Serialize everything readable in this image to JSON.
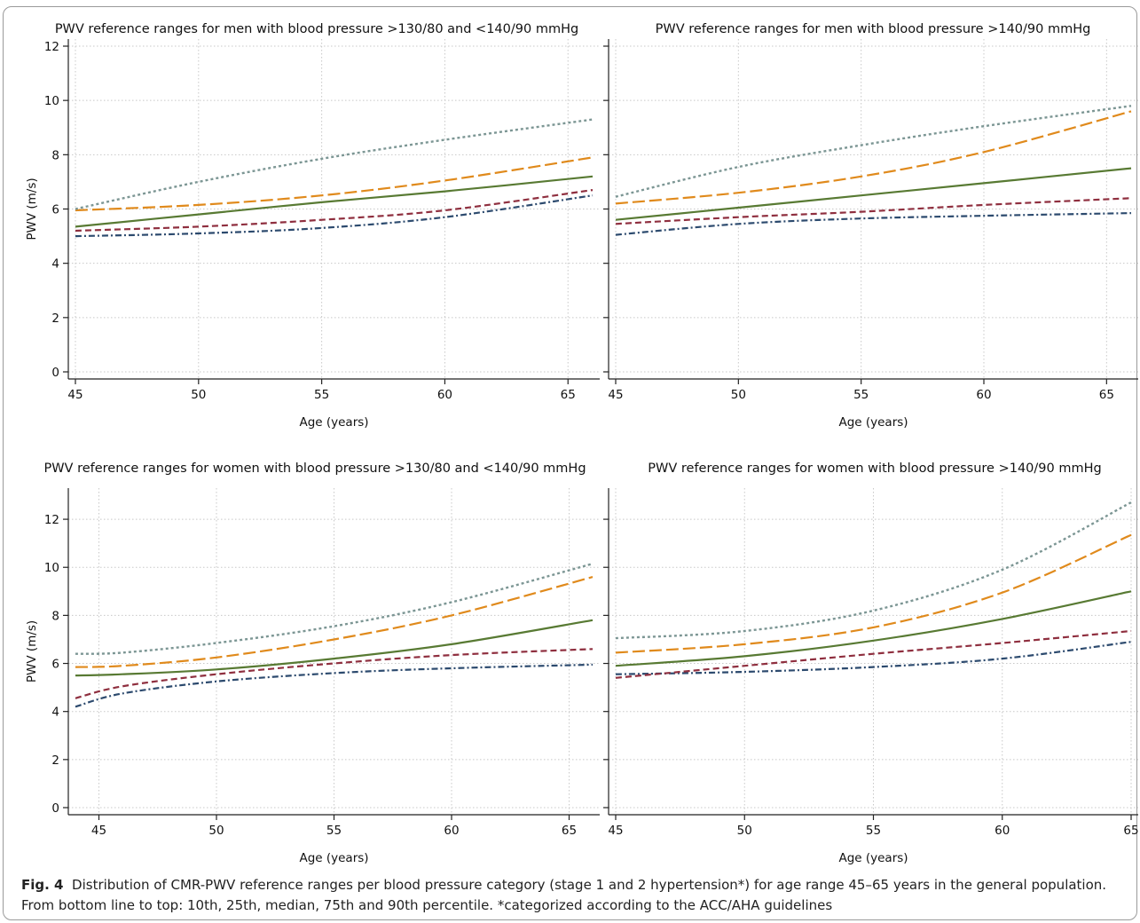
{
  "figure": {
    "caption_label": "Fig. 4",
    "caption_text": "Distribution of CMR-PWV reference ranges per blood pressure category (stage 1 and 2 hypertension*) for age range 45–65 years in the general population. From bottom line to top: 10th, 25th, median, 75th and 90th percentile. *categorized according to the ACC/AHA guidelines"
  },
  "styles": {
    "p10": {
      "color": "#2c4a6e",
      "dash": "7 3 2 3",
      "width": 2.2
    },
    "p25": {
      "color": "#8f2f3f",
      "dash": "7 4",
      "width": 2.2
    },
    "p50": {
      "color": "#587a33",
      "dash": "",
      "width": 2.2
    },
    "p75": {
      "color": "#e08a1c",
      "dash": "14 5",
      "width": 2.2
    },
    "p90": {
      "color": "#7c9694",
      "dash": "3 3",
      "width": 2.4
    }
  },
  "chart_data": [
    {
      "type": "line",
      "title": "PWV reference ranges for men with blood pressure >130/80 and <140/90 mmHg",
      "xlabel": "Age (years)",
      "ylabel": "PWV (m/s)",
      "xlim": [
        45,
        66
      ],
      "ylim": [
        0,
        12
      ],
      "xticks": [
        45,
        50,
        55,
        60,
        65
      ],
      "yticks": [
        0,
        2,
        4,
        6,
        8,
        10,
        12
      ],
      "x": [
        45,
        50,
        55,
        60,
        66
      ],
      "series": [
        {
          "key": "p10",
          "values": [
            5.0,
            5.1,
            5.3,
            5.7,
            6.5
          ]
        },
        {
          "key": "p25",
          "values": [
            5.2,
            5.35,
            5.6,
            5.95,
            6.7
          ]
        },
        {
          "key": "p50",
          "values": [
            5.35,
            5.8,
            6.25,
            6.65,
            7.2
          ]
        },
        {
          "key": "p75",
          "values": [
            5.95,
            6.15,
            6.5,
            7.05,
            7.9
          ]
        },
        {
          "key": "p90",
          "values": [
            6.0,
            7.0,
            7.85,
            8.55,
            9.3
          ]
        }
      ]
    },
    {
      "type": "line",
      "title": "PWV reference ranges for men with blood pressure >140/90 mmHg",
      "xlabel": "Age (years)",
      "ylabel": "",
      "xlim": [
        45,
        66
      ],
      "ylim": [
        0,
        12
      ],
      "xticks": [
        45,
        50,
        55,
        60,
        65
      ],
      "yticks": [
        0,
        2,
        4,
        6,
        8,
        10,
        12
      ],
      "x": [
        45,
        50,
        55,
        60,
        66
      ],
      "series": [
        {
          "key": "p10",
          "values": [
            5.05,
            5.45,
            5.65,
            5.75,
            5.85
          ]
        },
        {
          "key": "p25",
          "values": [
            5.45,
            5.7,
            5.9,
            6.15,
            6.4
          ]
        },
        {
          "key": "p50",
          "values": [
            5.6,
            6.05,
            6.5,
            6.95,
            7.5
          ]
        },
        {
          "key": "p75",
          "values": [
            6.2,
            6.6,
            7.2,
            8.1,
            9.6
          ]
        },
        {
          "key": "p90",
          "values": [
            6.45,
            7.55,
            8.35,
            9.05,
            9.8
          ]
        }
      ]
    },
    {
      "type": "line",
      "title": "PWV reference ranges for women with blood pressure >130/80 and <140/90 mmHg",
      "xlabel": "Age (years)",
      "ylabel": "PWV (m/s)",
      "xlim": [
        44,
        66
      ],
      "ylim": [
        0,
        13
      ],
      "xticks": [
        45,
        50,
        55,
        60,
        65
      ],
      "yticks": [
        0,
        2,
        4,
        6,
        8,
        10,
        12
      ],
      "x": [
        44,
        46,
        50,
        55,
        60,
        66
      ],
      "series": [
        {
          "key": "p10",
          "values": [
            4.2,
            4.75,
            5.25,
            5.6,
            5.8,
            5.95
          ]
        },
        {
          "key": "p25",
          "values": [
            4.55,
            5.05,
            5.55,
            6.0,
            6.35,
            6.6
          ]
        },
        {
          "key": "p50",
          "values": [
            5.5,
            5.55,
            5.75,
            6.2,
            6.8,
            7.8
          ]
        },
        {
          "key": "p75",
          "values": [
            5.85,
            5.9,
            6.25,
            7.0,
            8.0,
            9.6
          ]
        },
        {
          "key": "p90",
          "values": [
            6.4,
            6.45,
            6.85,
            7.55,
            8.55,
            10.15
          ]
        }
      ]
    },
    {
      "type": "line",
      "title": "PWV reference ranges for women with blood pressure >140/90 mmHg",
      "xlabel": "Age (years)",
      "ylabel": "",
      "xlim": [
        45,
        65
      ],
      "ylim": [
        0,
        13
      ],
      "xticks": [
        45,
        50,
        55,
        60,
        65
      ],
      "yticks": [
        0,
        2,
        4,
        6,
        8,
        10,
        12
      ],
      "x": [
        45,
        50,
        55,
        60,
        65
      ],
      "series": [
        {
          "key": "p10",
          "values": [
            5.55,
            5.65,
            5.85,
            6.2,
            6.9
          ]
        },
        {
          "key": "p25",
          "values": [
            5.4,
            5.9,
            6.4,
            6.85,
            7.35
          ]
        },
        {
          "key": "p50",
          "values": [
            5.9,
            6.3,
            6.95,
            7.85,
            9.0
          ]
        },
        {
          "key": "p75",
          "values": [
            6.45,
            6.8,
            7.5,
            8.95,
            11.35
          ]
        },
        {
          "key": "p90",
          "values": [
            7.05,
            7.35,
            8.2,
            9.9,
            12.7
          ]
        }
      ]
    }
  ]
}
